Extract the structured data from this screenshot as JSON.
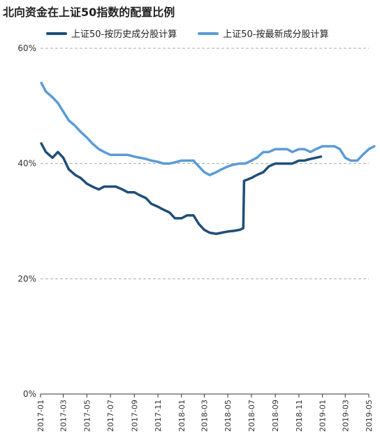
{
  "title": "北向资金在上证50指数的配置比例",
  "colors": {
    "historical": "#1f4e79",
    "latest": "#5b9bd5",
    "grid": "#aaaaaa",
    "axis": "#333333"
  },
  "chart_data": {
    "type": "line",
    "title": "北向资金在上证50指数的配置比例",
    "xlabel": "",
    "ylabel": "",
    "ylim": [
      0,
      60
    ],
    "yticks": [
      "0%",
      "20%",
      "40%",
      "60%"
    ],
    "grid": "horizontal-dashed",
    "legend_position": "top",
    "x_ticks": [
      "2017-01",
      "2017-03",
      "2017-05",
      "2017-07",
      "2017-09",
      "2017-11",
      "2018-01",
      "2018-03",
      "2018-05",
      "2018-07",
      "2018-09",
      "2018-11",
      "2019-01",
      "2019-03",
      "2019-05"
    ],
    "series": [
      {
        "name": "上证50-按历史成分股计算",
        "color": "#1f4e79",
        "x": [
          "2017-01-03",
          "2017-01-15",
          "2017-02-01",
          "2017-02-15",
          "2017-03-01",
          "2017-03-15",
          "2017-04-01",
          "2017-04-15",
          "2017-05-01",
          "2017-05-15",
          "2017-06-01",
          "2017-06-15",
          "2017-07-01",
          "2017-07-15",
          "2017-08-01",
          "2017-08-15",
          "2017-09-01",
          "2017-09-15",
          "2017-10-01",
          "2017-10-15",
          "2017-11-01",
          "2017-11-15",
          "2017-12-01",
          "2017-12-15",
          "2018-01-01",
          "2018-01-15",
          "2018-02-01",
          "2018-02-15",
          "2018-03-01",
          "2018-03-15",
          "2018-04-01",
          "2018-04-15",
          "2018-05-01",
          "2018-05-15",
          "2018-06-01",
          "2018-06-10",
          "2018-06-12",
          "2018-06-20",
          "2018-07-01",
          "2018-07-15",
          "2018-08-01",
          "2018-08-15",
          "2018-09-01",
          "2018-09-15",
          "2018-10-01",
          "2018-10-15",
          "2018-11-01",
          "2018-11-15",
          "2018-12-01",
          "2018-12-15",
          "2018-12-28"
        ],
        "values": [
          43.5,
          42.0,
          41.0,
          42.0,
          41.0,
          39.0,
          38.0,
          37.5,
          36.5,
          36.0,
          35.5,
          36.0,
          36.0,
          36.0,
          35.5,
          35.0,
          35.0,
          34.5,
          34.0,
          33.0,
          32.5,
          32.0,
          31.5,
          30.5,
          30.5,
          31.0,
          31.0,
          29.5,
          28.5,
          28.0,
          27.8,
          28.0,
          28.2,
          28.3,
          28.5,
          28.8,
          37.0,
          37.2,
          37.5,
          38.0,
          38.5,
          39.5,
          40.0,
          40.0,
          40.0,
          40.0,
          40.5,
          40.5,
          40.8,
          41.0,
          41.2
        ]
      },
      {
        "name": "上证50-按最新成分股计算",
        "color": "#5b9bd5",
        "x": [
          "2017-01-03",
          "2017-01-15",
          "2017-02-01",
          "2017-02-15",
          "2017-03-01",
          "2017-03-15",
          "2017-04-01",
          "2017-04-15",
          "2017-05-01",
          "2017-05-15",
          "2017-06-01",
          "2017-06-15",
          "2017-07-01",
          "2017-07-15",
          "2017-08-01",
          "2017-08-15",
          "2017-09-01",
          "2017-09-15",
          "2017-10-01",
          "2017-10-15",
          "2017-11-01",
          "2017-11-15",
          "2017-12-01",
          "2017-12-15",
          "2018-01-01",
          "2018-01-15",
          "2018-02-01",
          "2018-02-15",
          "2018-03-01",
          "2018-03-15",
          "2018-04-01",
          "2018-04-15",
          "2018-05-01",
          "2018-05-15",
          "2018-06-01",
          "2018-06-15",
          "2018-07-01",
          "2018-07-15",
          "2018-08-01",
          "2018-08-15",
          "2018-09-01",
          "2018-09-15",
          "2018-10-01",
          "2018-10-15",
          "2018-11-01",
          "2018-11-15",
          "2018-12-01",
          "2018-12-15",
          "2019-01-01",
          "2019-01-15",
          "2019-02-01",
          "2019-02-15",
          "2019-03-01",
          "2019-03-15",
          "2019-04-01",
          "2019-04-15",
          "2019-05-01",
          "2019-05-15"
        ],
        "values": [
          54.0,
          52.5,
          51.5,
          50.5,
          49.0,
          47.5,
          46.5,
          45.5,
          44.5,
          43.5,
          42.5,
          42.0,
          41.5,
          41.5,
          41.5,
          41.5,
          41.2,
          41.0,
          40.8,
          40.5,
          40.3,
          40.0,
          40.0,
          40.2,
          40.5,
          40.5,
          40.5,
          39.5,
          38.5,
          38.0,
          38.5,
          39.0,
          39.5,
          39.8,
          40.0,
          40.0,
          40.5,
          41.0,
          42.0,
          42.0,
          42.5,
          42.5,
          42.5,
          42.0,
          42.5,
          42.5,
          42.0,
          42.5,
          43.0,
          43.0,
          43.0,
          42.5,
          41.0,
          40.5,
          40.5,
          41.5,
          42.5,
          43.0
        ]
      }
    ]
  }
}
